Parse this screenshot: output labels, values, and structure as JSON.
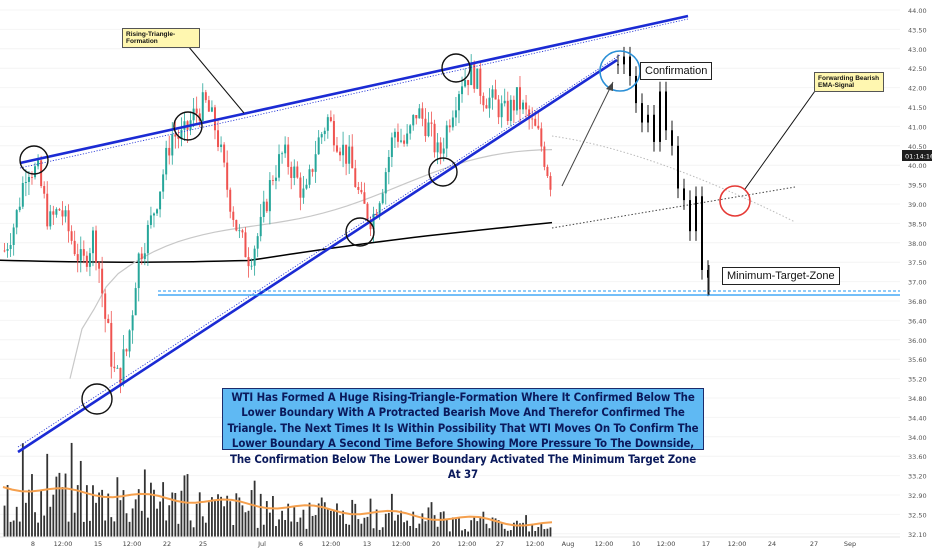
{
  "chart_data": {
    "type": "candlestick",
    "title": "",
    "ylim": [
      31.9,
      44.1
    ],
    "y_ticks": [
      "44.00",
      "43.50",
      "43.00",
      "42.50",
      "42.00",
      "41.50",
      "41.00",
      "40.50",
      "40.00",
      "39.50",
      "39.00",
      "38.50",
      "38.00",
      "37.50",
      "37.00",
      "36.80",
      "36.40",
      "36.00",
      "35.60",
      "35.20",
      "34.80",
      "34.40",
      "34.00",
      "33.60",
      "33.20",
      "32.90",
      "32.50",
      "32.10"
    ],
    "x_ticks": [
      "8",
      "12:00",
      "15",
      "12:00",
      "22",
      "25",
      "Jul",
      "6",
      "12:00",
      "13",
      "12:00",
      "20",
      "12:00",
      "27",
      "12:00",
      "Aug",
      "12:00",
      "10",
      "12:00",
      "17",
      "12:00",
      "24",
      "27",
      "Sep"
    ],
    "price_badge": "01:14:16",
    "candles": {
      "note": "approximate daily close path read from the chart",
      "closes": [
        37.8,
        38.6,
        40.0,
        39.8,
        38.5,
        38.9,
        38.1,
        37.4,
        38.2,
        36.5,
        35.1,
        35.8,
        37.6,
        38.4,
        39.5,
        40.8,
        40.7,
        41.3,
        41.6,
        40.9,
        39.4,
        38.2,
        37.6,
        38.4,
        39.7,
        40.3,
        39.8,
        39.1,
        40.5,
        41.2,
        40.6,
        40.1,
        39.0,
        38.6,
        39.6,
        40.9,
        40.5,
        41.4,
        41.0,
        40.2,
        41.3,
        42.2,
        42.4,
        41.8,
        41.6,
        41.3,
        41.7,
        41.2,
        40.7,
        39.6
      ]
    },
    "projection": {
      "closes": [
        42.6,
        42.8,
        42.3,
        41.6,
        41.1,
        41.3,
        40.6,
        41.9,
        40.9,
        40.5,
        39.4,
        39.1,
        38.3,
        39.2,
        37.3,
        37.1
      ]
    },
    "annotations": {
      "pattern_label": "Rising-Triangle-Formation",
      "confirmation_label": "Confirmation",
      "target_label": "Minimum-Target-Zone",
      "ema_label": "Forwarding Bearish EMA-Signal",
      "note": "WTI Has Formed A Huge Rising-Triangle-Formation Where It Confirmed Below The Lower Boundary With A Protracted Bearish Move And Therefor Confirmed The Triangle. The Next Times It Is Within Possibility That WTI Moves On To Confirm The Lower Boundary A Second Time Before Showing More Pressure To The Downside, The Confirmation Below The Lower Boundary Activated The Minimum Target Zone At 37"
    },
    "colors": {
      "up": "#26a69a",
      "down": "#ef5350",
      "trendline": "#1b2bd4",
      "ema_slow": "#000000",
      "ema_fast": "#c8c8c8",
      "volume_ma": "#f5a04e",
      "target_line": "#2196f3",
      "projection": "#000000"
    }
  }
}
